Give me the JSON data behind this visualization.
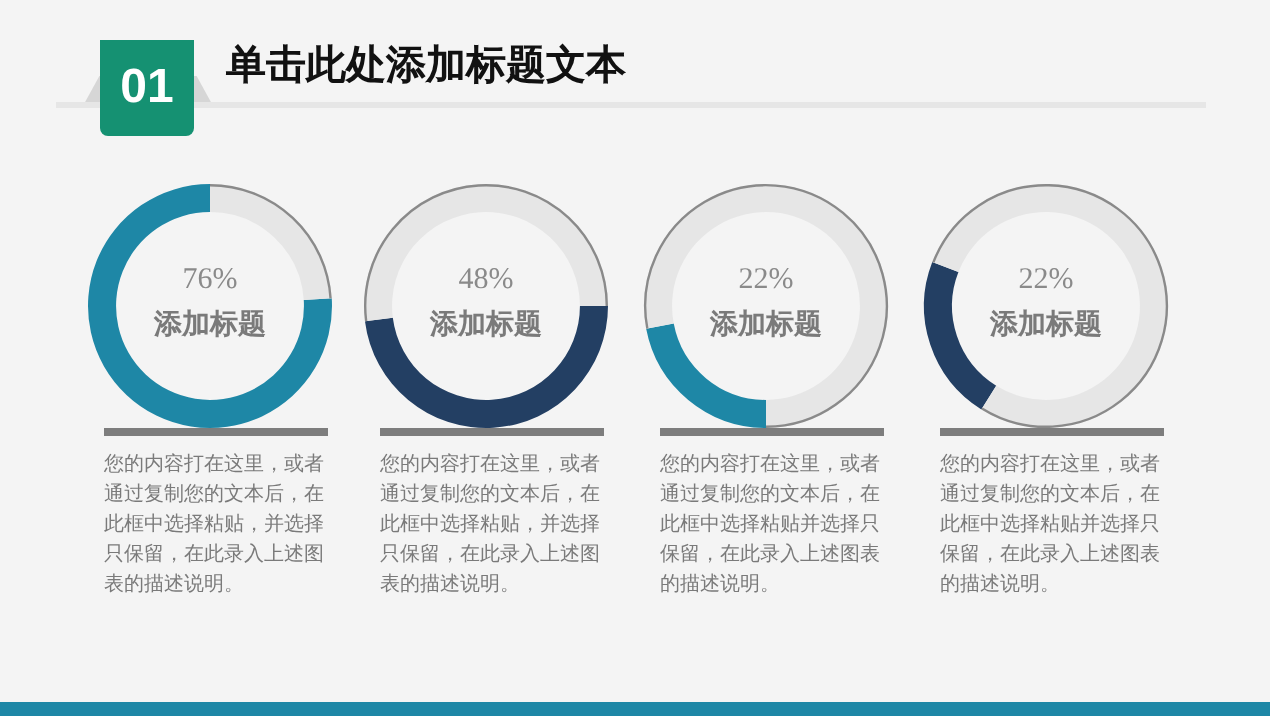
{
  "chart_data": [
    {
      "type": "other",
      "title": "单击此处添加标题文本",
      "annotations": [
        "01"
      ]
    },
    {
      "type": "donut",
      "title": "添加标题",
      "categories": [
        null,
        null
      ],
      "values": [
        76,
        24
      ],
      "colors": [
        "#1e87a6",
        "#e6e6e6"
      ],
      "legend": false,
      "annotations": [
        "76%",
        "您的内容打在这里，或者通过复制您的文本后，在此框中选择粘贴，并选择只保留，在此录入上述图表的描述说明。"
      ]
    },
    {
      "type": "donut",
      "title": "添加标题",
      "categories": [
        null,
        null
      ],
      "values": [
        48,
        52
      ],
      "colors": [
        "#233f63",
        "#e6e6e6"
      ],
      "legend": false,
      "annotations": [
        "48%",
        "您的内容打在这里，或者通过复制您的文本后，在此框中选择粘贴，并选择只保留，在此录入上述图表的描述说明。"
      ]
    },
    {
      "type": "donut",
      "title": "添加标题",
      "categories": [
        null,
        null
      ],
      "values": [
        22,
        78
      ],
      "colors": [
        "#1e87a6",
        "#e6e6e6"
      ],
      "legend": false,
      "annotations": [
        "22%",
        "您的内容打在这里，或者通过复制您的文本后，在此框中选择粘贴并选择只保留，在此录入上述图表的描述说明。"
      ]
    },
    {
      "type": "donut",
      "title": "添加标题",
      "categories": [
        null,
        null
      ],
      "values": [
        22,
        78
      ],
      "colors": [
        "#233f63",
        "#e6e6e6"
      ],
      "legend": false,
      "annotations": [
        "22%",
        "您的内容打在这里，或者通过复制您的文本后，在此框中选择粘贴并选择只保留，在此录入上述图表的描述说明。"
      ]
    }
  ]
}
